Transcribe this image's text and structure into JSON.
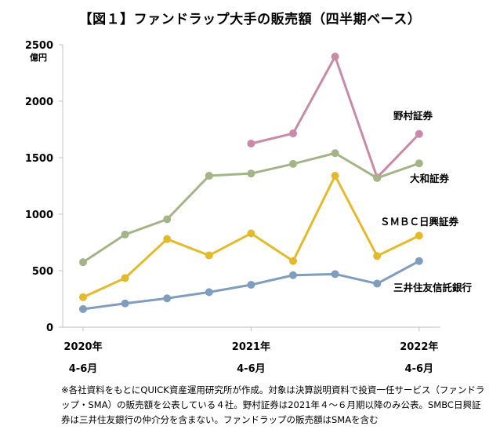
{
  "title": "【図１】ファンドラップ大手の販売額（四半期ベース）",
  "unit_label": "億円",
  "note": "※各社資料をもとにQUICK資産運用研究所が作成。対象は決算説明資料で投資一任サービス（ファンドラップ・SMA）の販売額を公表している４社。野村証券は2021年４～６月期以降のみ公表。SMBC日興証券は三井住友銀行の仲介分を含まない。ファンドラップの販売額はSMAを含む",
  "chart_data": {
    "type": "line",
    "title": "【図１】ファンドラップ大手の販売額（四半期ベース）",
    "xlabel": "",
    "ylabel": "億円",
    "ylim": [
      0,
      2500
    ],
    "yticks": [
      0,
      500,
      1000,
      1500,
      2000,
      2500
    ],
    "grid": false,
    "x_count": 9,
    "x_tick_labels": [
      {
        "index": 0,
        "year": "2020年",
        "quarter": "4-6月"
      },
      {
        "index": 4,
        "year": "2021年",
        "quarter": "4-6月"
      },
      {
        "index": 8,
        "year": "2022年",
        "quarter": "4-6月"
      }
    ],
    "series": [
      {
        "name": "野村証券",
        "color": "#c98aa8",
        "values": [
          null,
          null,
          null,
          null,
          1625,
          1715,
          2395,
          1325,
          1710
        ]
      },
      {
        "name": "大和証券",
        "color": "#a3b586",
        "values": [
          575,
          820,
          955,
          1340,
          1360,
          1445,
          1540,
          1320,
          1450
        ]
      },
      {
        "name": "ＳＭＢＣ日興証券",
        "color": "#e3bb2a",
        "values": [
          265,
          435,
          780,
          635,
          830,
          585,
          1340,
          630,
          810
        ]
      },
      {
        "name": "三井住友信託銀行",
        "color": "#7f9ebe",
        "values": [
          160,
          210,
          255,
          310,
          375,
          460,
          470,
          385,
          585
        ]
      }
    ]
  }
}
